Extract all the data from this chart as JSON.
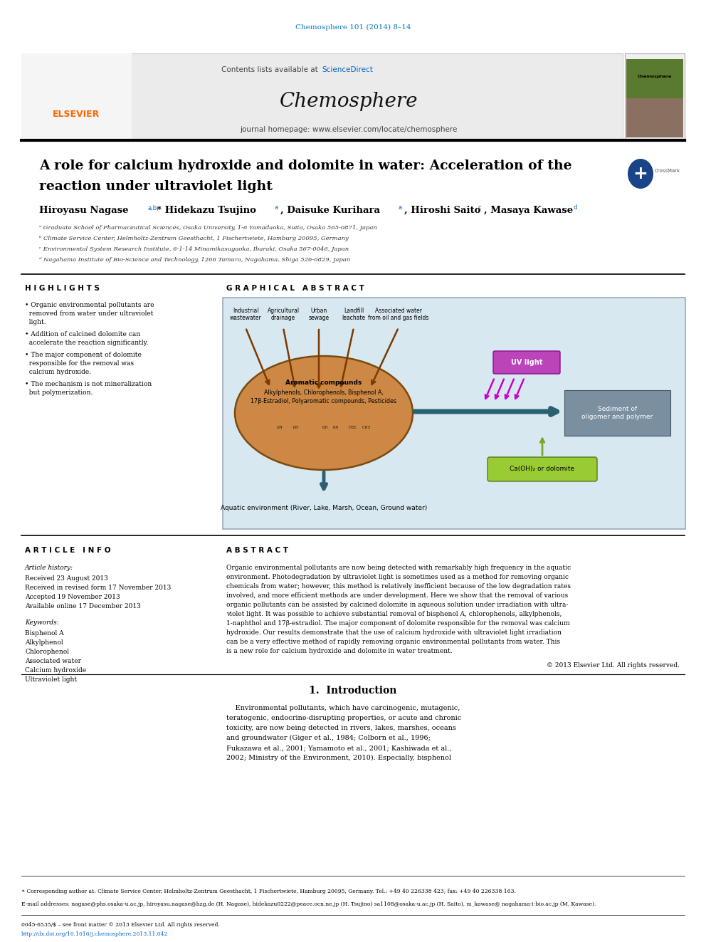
{
  "page_title": "Chemosphere 101 (2014) 8–14",
  "journal_name": "Chemosphere",
  "contents_line": "Contents lists available at ScienceDirect",
  "journal_homepage": "journal homepage: www.elsevier.com/locate/chemosphere",
  "article_title_line1": "A role for calcium hydroxide and dolomite in water: Acceleration of the",
  "article_title_line2": "reaction under ultraviolet light",
  "affil_a": "ᵃ Graduate School of Pharmaceutical Sciences, Osaka University, 1-6 Yamadaoka, Suita, Osaka 565-0871, Japan",
  "affil_b": "ᵇ Climate Service Center, Helmholtz-Zentrum Geesthacht, 1 Fischertwiete, Hamburg 20095, Germany",
  "affil_c": "ᶜ Environmental System Research Institute, 6-1-14 Minamikasugaoka, Ibaraki, Osaka 567-0046, Japan",
  "affil_d": "ᵈ Nagahama Institute of Bio-Science and Technology, 1266 Tamura, Nagahama, Shiga 526-0829, Japan",
  "highlights_title": "H I G H L I G H T S",
  "highlights": [
    "• Organic environmental pollutants are\n  removed from water under ultraviolet\n  light.",
    "• Addition of calcined dolomite can\n  accelerate the reaction significantly.",
    "• The major component of dolomite\n  responsible for the removal was\n  calcium hydroxide.",
    "• The mechanism is not mineralization\n  but polymerization."
  ],
  "graphical_abstract_title": "G R A P H I C A L   A B S T R A C T",
  "article_info_title": "A R T I C L E   I N F O",
  "abstract_title": "A B S T R A C T",
  "article_history_label": "Article history:",
  "history_items": [
    "Received 23 August 2013",
    "Received in revised form 17 November 2013",
    "Accepted 19 November 2013",
    "Available online 17 December 2013"
  ],
  "keywords_label": "Keywords:",
  "keywords": [
    "Bisphenol A",
    "Alkylphenol",
    "Chlorophenol",
    "Associated water",
    "Calcium hydroxide",
    "Ultraviolet light"
  ],
  "abstract_lines": [
    "Organic environmental pollutants are now being detected with remarkably high frequency in the aquatic",
    "environment. Photodegradation by ultraviolet light is sometimes used as a method for removing organic",
    "chemicals from water; however, this method is relatively inefficient because of the low degradation rates",
    "involved, and more efficient methods are under development. Here we show that the removal of various",
    "organic pollutants can be assisted by calcined dolomite in aqueous solution under irradiation with ultra-",
    "violet light. It was possible to achieve substantial removal of bisphenol A, chlorophenols, alkylphenols,",
    "1-naphthol and 17β-estradiol. The major component of dolomite responsible for the removal was calcium",
    "hydroxide. Our results demonstrate that the use of calcium hydroxide with ultraviolet light irradiation",
    "can be a very effective method of rapidly removing organic environmental pollutants from water. This",
    "is a new role for calcium hydroxide and dolomite in water treatment."
  ],
  "copyright_text": "© 2013 Elsevier Ltd. All rights reserved.",
  "introduction_title": "1.  Introduction",
  "intro_lines": [
    "    Environmental pollutants, which have carcinogenic, mutagenic,",
    "teratogenic, endocrine-disrupting properties, or acute and chronic",
    "toxicity, are now being detected in rivers, lakes, marshes, oceans",
    "and groundwater (Giger et al., 1984; Colborn et al., 1996;",
    "Fukazawa et al., 2001; Yamamoto et al., 2001; Kashiwada et al.,",
    "2002; Ministry of the Environment, 2010). Especially, bisphenol"
  ],
  "footer_star": "∗ Corresponding author at: Climate Service Center, Helmholtz-Zentrum Geesthacht, 1 Fischertwiete, Hamburg 20095, Germany. Tel.: +49 40 226338 423; fax: +49 40 226338 163.",
  "footer_email": "E-mail addresses: nagase@phs.osaka-u.ac.jp, hiroyasu.nagase@hzg.de (H. Nagase), hidekazu0222@peace.ocn.ne.jp (H. Tsujino) sa1108@osaka-u.ac.jp (H. Saito), m_kawase@ nagahama-i-bio.ac.jp (M. Kawase).",
  "footer_issn": "0045-6535/$ – see front matter © 2013 Elsevier Ltd. All rights reserved.",
  "footer_doi": "http://dx.doi.org/10.1016/j.chemosphere.2013.11.042",
  "source_labels": [
    "Industrial\nwastewater",
    "Agricultural\ndrainage",
    "Urban\nsewage",
    "Landfill\nleachate",
    "Associated water\nfrom oil and gas fields"
  ],
  "ellipse_color": "#cc8844",
  "ellipse_edge": "#7a4a10",
  "ellipse_text1": "Aromatic compounds",
  "ellipse_text2": "Alkylphenols, Chlorophenols, Bisphenol A,",
  "ellipse_text3": "17β-Estradiol, Polyaromatic compounds, Pesticides",
  "uv_box_color": "#bb44bb",
  "uv_text": "UV light",
  "sediment_box_color": "#7a8fa0",
  "sediment_text": "Sediment of\noligomer and polymer",
  "ca_box_color": "#99cc33",
  "ca_text": "Ca(OH)₂ or dolomite",
  "aquatic_text": "Aquatic environment (River, Lake, Marsh, Ocean, Ground water)",
  "graphical_bg": "#d8e8f0",
  "arrow_brown": "#7a3a00",
  "arrow_teal": "#2a6070",
  "bg_color": "#ffffff",
  "link_color": "#0066cc",
  "title_color": "#0077bb"
}
